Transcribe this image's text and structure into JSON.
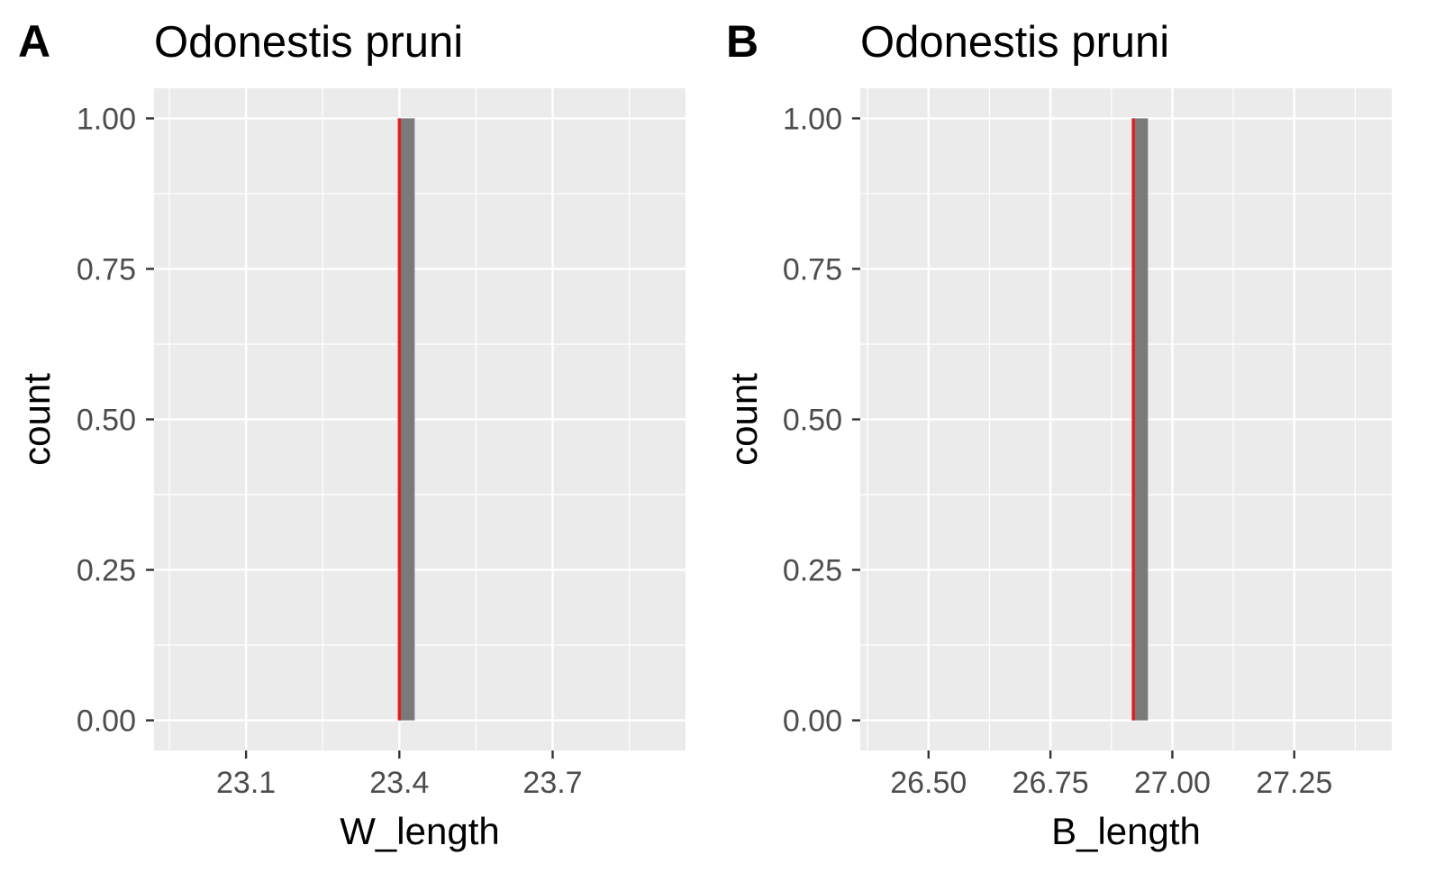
{
  "chart_data": [
    {
      "type": "bar",
      "panel_tag": "A",
      "title": "Odonestis pruni",
      "xlabel": "W_length",
      "ylabel": "count",
      "xlim": [
        22.92,
        23.96
      ],
      "ylim": [
        -0.05,
        1.05
      ],
      "xticks": [
        23.1,
        23.4,
        23.7
      ],
      "xtick_labels": [
        "23.1",
        "23.4",
        "23.7"
      ],
      "yticks": [
        0,
        0.25,
        0.5,
        0.75,
        1
      ],
      "ytick_labels": [
        "0.00",
        "0.25",
        "0.50",
        "0.75",
        "1.00"
      ],
      "bars": [
        {
          "x_start": 23.4,
          "x_end": 23.43,
          "count": 1
        }
      ],
      "vline": {
        "x": 23.4,
        "color": "#e41a1c"
      },
      "grid": true,
      "bar_color": "#7a7a7a"
    },
    {
      "type": "bar",
      "panel_tag": "B",
      "title": "Odonestis pruni",
      "xlabel": "B_length",
      "ylabel": "count",
      "xlim": [
        26.36,
        27.45
      ],
      "ylim": [
        -0.05,
        1.05
      ],
      "xticks": [
        26.5,
        26.75,
        27.0,
        27.25
      ],
      "xtick_labels": [
        "26.50",
        "26.75",
        "27.00",
        "27.25"
      ],
      "yticks": [
        0,
        0.25,
        0.5,
        0.75,
        1
      ],
      "ytick_labels": [
        "0.00",
        "0.25",
        "0.50",
        "0.75",
        "1.00"
      ],
      "bars": [
        {
          "x_start": 26.92,
          "x_end": 26.95,
          "count": 1
        }
      ],
      "vline": {
        "x": 26.92,
        "color": "#e41a1c"
      },
      "grid": true,
      "bar_color": "#7a7a7a"
    }
  ]
}
